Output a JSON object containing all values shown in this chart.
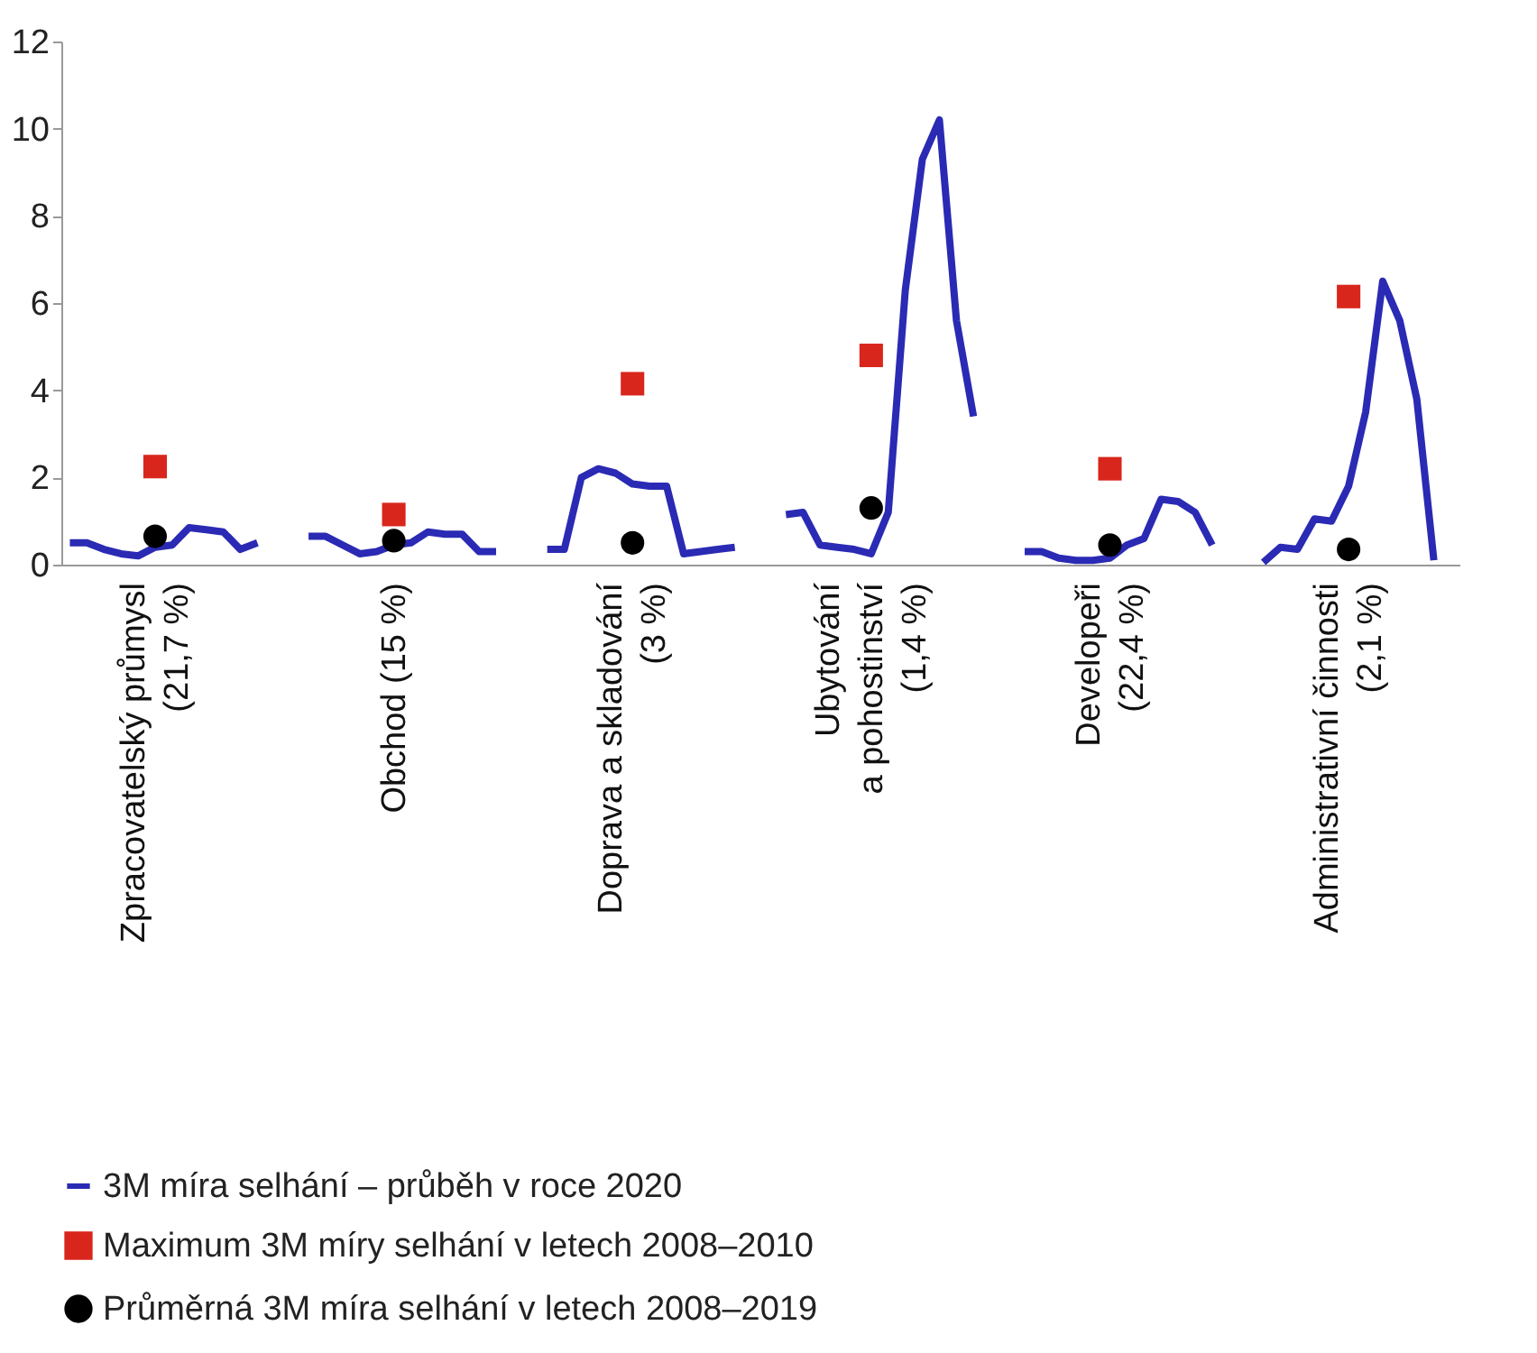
{
  "chart_data": {
    "type": "line",
    "categories": [
      null,
      null,
      null,
      null,
      null,
      "Zpracovatelský průmysl\n(21,7 %)",
      null,
      null,
      null,
      null,
      null,
      null,
      null,
      null,
      null,
      null,
      null,
      null,
      null,
      "Obchod (15 %)",
      null,
      null,
      null,
      null,
      null,
      null,
      null,
      null,
      null,
      null,
      null,
      null,
      null,
      "Doprava a skladování\n(3 %)",
      null,
      null,
      null,
      null,
      null,
      null,
      null,
      null,
      null,
      null,
      null,
      null,
      null,
      "Ubytování\na pohostinství\n(1,4 %)",
      null,
      null,
      null,
      null,
      null,
      null,
      null,
      null,
      null,
      null,
      null,
      null,
      null,
      "Developeři\n(22,4 %)",
      null,
      null,
      null,
      null,
      null,
      null,
      null,
      null,
      null,
      null,
      null,
      null,
      null,
      "Administrativní činnosti\n(2,1 %)",
      null,
      null,
      null,
      null,
      null,
      null
    ],
    "series": [
      {
        "name": "3M míra selhání – průběh v roce 2020",
        "type": "line",
        "color": "#2a2ab4",
        "values": [
          0.5,
          0.5,
          0.35,
          0.25,
          0.2,
          0.4,
          0.45,
          0.85,
          0.8,
          0.75,
          0.35,
          0.5,
          null,
          null,
          0.65,
          0.65,
          0.45,
          0.25,
          0.3,
          0.45,
          0.5,
          0.75,
          0.7,
          0.7,
          0.3,
          0.3,
          null,
          null,
          0.35,
          0.35,
          2.0,
          2.2,
          2.1,
          1.85,
          1.8,
          1.8,
          0.25,
          0.3,
          0.35,
          0.4,
          null,
          null,
          1.15,
          1.2,
          0.45,
          0.4,
          0.35,
          0.25,
          1.2,
          6.3,
          9.3,
          10.2,
          5.6,
          3.4,
          null,
          null,
          0.3,
          0.3,
          0.15,
          0.1,
          0.1,
          0.15,
          0.45,
          0.6,
          1.5,
          1.45,
          1.2,
          0.45,
          null,
          null,
          0.05,
          0.4,
          0.35,
          1.05,
          1.0,
          1.8,
          3.5,
          6.5,
          5.6,
          3.8,
          0.1,
          null
        ]
      },
      {
        "name": "Maximum 3M míry selhání v letech 2008–2010",
        "type": "scatter",
        "marker": "square",
        "color": "#d9261c",
        "values": [
          null,
          null,
          null,
          null,
          null,
          2.25,
          null,
          null,
          null,
          null,
          null,
          null,
          null,
          null,
          null,
          null,
          null,
          null,
          null,
          1.15,
          null,
          null,
          null,
          null,
          null,
          null,
          null,
          null,
          null,
          null,
          null,
          null,
          null,
          4.15,
          null,
          null,
          null,
          null,
          null,
          null,
          null,
          null,
          null,
          null,
          null,
          null,
          null,
          4.8,
          null,
          null,
          null,
          null,
          null,
          null,
          null,
          null,
          null,
          null,
          null,
          null,
          null,
          2.2,
          null,
          null,
          null,
          null,
          null,
          null,
          null,
          null,
          null,
          null,
          null,
          null,
          null,
          6.15,
          null,
          null,
          null,
          null,
          null,
          null
        ]
      },
      {
        "name": "Průměrná 3M míra selhání v letech 2008–2019",
        "type": "scatter",
        "marker": "circle",
        "color": "#000000",
        "values": [
          null,
          null,
          null,
          null,
          null,
          0.65,
          null,
          null,
          null,
          null,
          null,
          null,
          null,
          null,
          null,
          null,
          null,
          null,
          null,
          0.55,
          null,
          null,
          null,
          null,
          null,
          null,
          null,
          null,
          null,
          null,
          null,
          null,
          null,
          0.5,
          null,
          null,
          null,
          null,
          null,
          null,
          null,
          null,
          null,
          null,
          null,
          null,
          null,
          1.3,
          null,
          null,
          null,
          null,
          null,
          null,
          null,
          null,
          null,
          null,
          null,
          null,
          null,
          0.45,
          null,
          null,
          null,
          null,
          null,
          null,
          null,
          null,
          null,
          null,
          null,
          null,
          null,
          0.35,
          null,
          null,
          null,
          null,
          null,
          null
        ]
      }
    ],
    "ylim": [
      0,
      12
    ],
    "yticks": [
      0,
      2,
      4,
      6,
      8,
      10,
      12
    ],
    "grid": false,
    "legend": "bottom"
  }
}
